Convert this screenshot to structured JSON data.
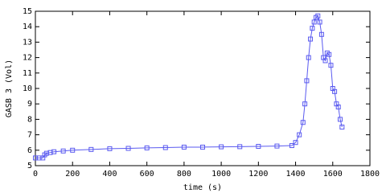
{
  "chart_data": {
    "type": "line",
    "x_label": "time (s)",
    "y_label": "GASB 3 (Vol)",
    "x": [
      0,
      20,
      40,
      50,
      60,
      80,
      100,
      150,
      200,
      300,
      400,
      500,
      600,
      700,
      800,
      900,
      1000,
      1100,
      1200,
      1300,
      1380,
      1400,
      1420,
      1440,
      1450,
      1460,
      1470,
      1480,
      1490,
      1500,
      1510,
      1520,
      1530,
      1540,
      1550,
      1560,
      1570,
      1580,
      1590,
      1600,
      1610,
      1620,
      1630,
      1640,
      1650
    ],
    "series": [
      {
        "color": "#5a5af0",
        "values": [
          5.5,
          5.5,
          5.5,
          5.7,
          5.8,
          5.85,
          5.9,
          5.95,
          6.0,
          6.05,
          6.1,
          6.12,
          6.15,
          6.17,
          6.2,
          6.2,
          6.22,
          6.23,
          6.25,
          6.27,
          6.3,
          6.5,
          7.0,
          7.8,
          9.0,
          10.5,
          12.0,
          13.2,
          13.9,
          14.3,
          14.6,
          14.7,
          14.3,
          13.5,
          12.0,
          11.8,
          12.3,
          12.2,
          11.5,
          10.0,
          9.8,
          9.0,
          8.8,
          8.0,
          7.5
        ]
      }
    ],
    "xlim": [
      0,
      1800
    ],
    "xticks": [
      0,
      200,
      400,
      600,
      800,
      1000,
      1200,
      1400,
      1600,
      1800
    ],
    "ylim": [
      5,
      15
    ],
    "yticks": [
      5,
      6,
      7,
      8,
      9,
      10,
      11,
      12,
      13,
      14,
      15
    ]
  }
}
